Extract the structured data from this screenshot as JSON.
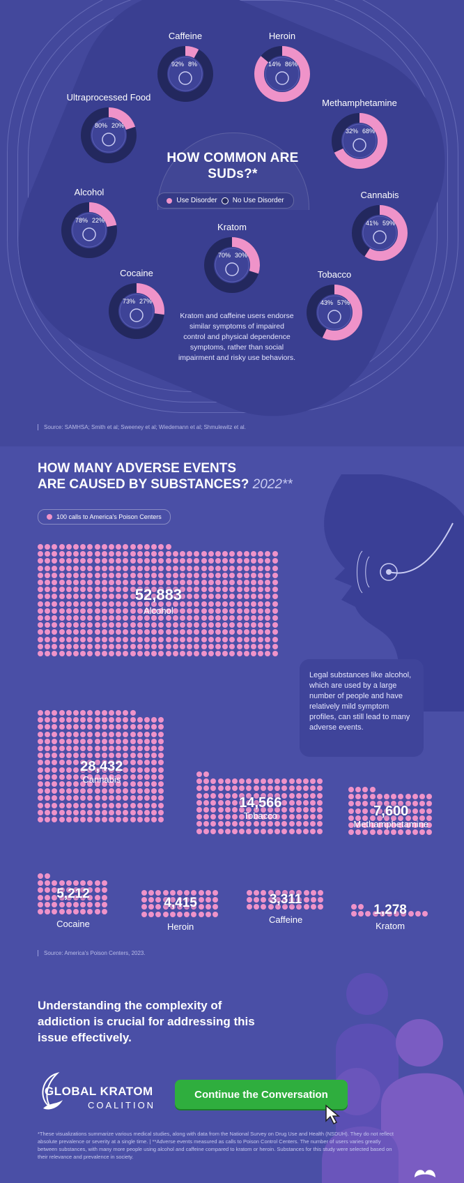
{
  "top": {
    "title": "HOW COMMON ARE SUDs?*",
    "legend": {
      "use": "Use Disorder",
      "no_use": "No Use Disorder"
    },
    "kratom_note": "Kratom and caffeine users endorse similar symptoms of impaired control and physical dependence symptoms, rather than social impairment and risky use behaviors.",
    "source": "Source: SAMHSA; Smith et al; Sweeney et al; Wiedemann et al; Shmulewitz et al.",
    "substances": [
      {
        "name": "Caffeine",
        "no_use": "92%",
        "use": "8%",
        "use_frac": 0.08,
        "icon": "coffee-molecule-icon"
      },
      {
        "name": "Heroin",
        "no_use": "14%",
        "use": "86%",
        "use_frac": 0.86,
        "icon": "syringe-icon"
      },
      {
        "name": "Ultraprocessed Food",
        "no_use": "80%",
        "use": "20%",
        "use_frac": 0.2,
        "icon": "fast-food-icon"
      },
      {
        "name": "Methamphetamine",
        "no_use": "32%",
        "use": "68%",
        "use_frac": 0.68,
        "icon": "crystal-icon"
      },
      {
        "name": "Alcohol",
        "no_use": "78%",
        "use": "22%",
        "use_frac": 0.22,
        "icon": "wine-glass-icon"
      },
      {
        "name": "Cannabis",
        "no_use": "41%",
        "use": "59%",
        "use_frac": 0.59,
        "icon": "cannabis-leaf-icon"
      },
      {
        "name": "Kratom",
        "no_use": "70%",
        "use": "30%",
        "use_frac": 0.3,
        "icon": "kratom-leaf-icon"
      },
      {
        "name": "Cocaine",
        "no_use": "73%",
        "use": "27%",
        "use_frac": 0.27,
        "icon": "powder-bag-icon"
      },
      {
        "name": "Tobacco",
        "no_use": "43%",
        "use": "57%",
        "use_frac": 0.57,
        "icon": "cigarette-icon"
      }
    ]
  },
  "middle": {
    "title_line1": "HOW MANY ADVERSE EVENTS",
    "title_line2": "ARE CAUSED BY SUBSTANCES?",
    "year": "2022**",
    "pill": "100 calls to America's Poison Centers",
    "callout": "Legal substances like alcohol, which are used by a large number of people and have relatively mild symptom profiles, can still lead to many adverse events.",
    "source": "Source: America's Poison Centers, 2023.",
    "events": [
      {
        "name": "Alcohol",
        "count": "52,883"
      },
      {
        "name": "Cannabis",
        "count": "28,432"
      },
      {
        "name": "Tobacco",
        "count": "14,566"
      },
      {
        "name": "Methamphetamine",
        "count": "7,600"
      },
      {
        "name": "Cocaine",
        "count": "5,212"
      },
      {
        "name": "Heroin",
        "count": "4,415"
      },
      {
        "name": "Caffeine",
        "count": "3,311"
      },
      {
        "name": "Kratom",
        "count": "1,278"
      }
    ]
  },
  "bottom": {
    "message": "Understanding the complexity of addiction is crucial for addressing this issue effectively.",
    "logo_line1": "GLOBAL KRATOM",
    "logo_line2": "COALITION",
    "cta": "Continue the Conversation",
    "footnote": "*These visualizations summarize various medical studies, along with data from the National Survey on Drug Use and Health (NSDUH). They do not reflect absolute prevalence or severity at a single time. | **Adverse events measured as calls to Poison Control Centers. The number of users varies greatly between substances, with many more people using alcohol and caffeine compared to kratom or heroin. Substances for this study were selected based on their relevance and prevalence in society."
  },
  "colors": {
    "pink": "#ef93c9",
    "navy": "#23285e",
    "bg": "#4a4fa6",
    "green": "#2fae3e"
  }
}
